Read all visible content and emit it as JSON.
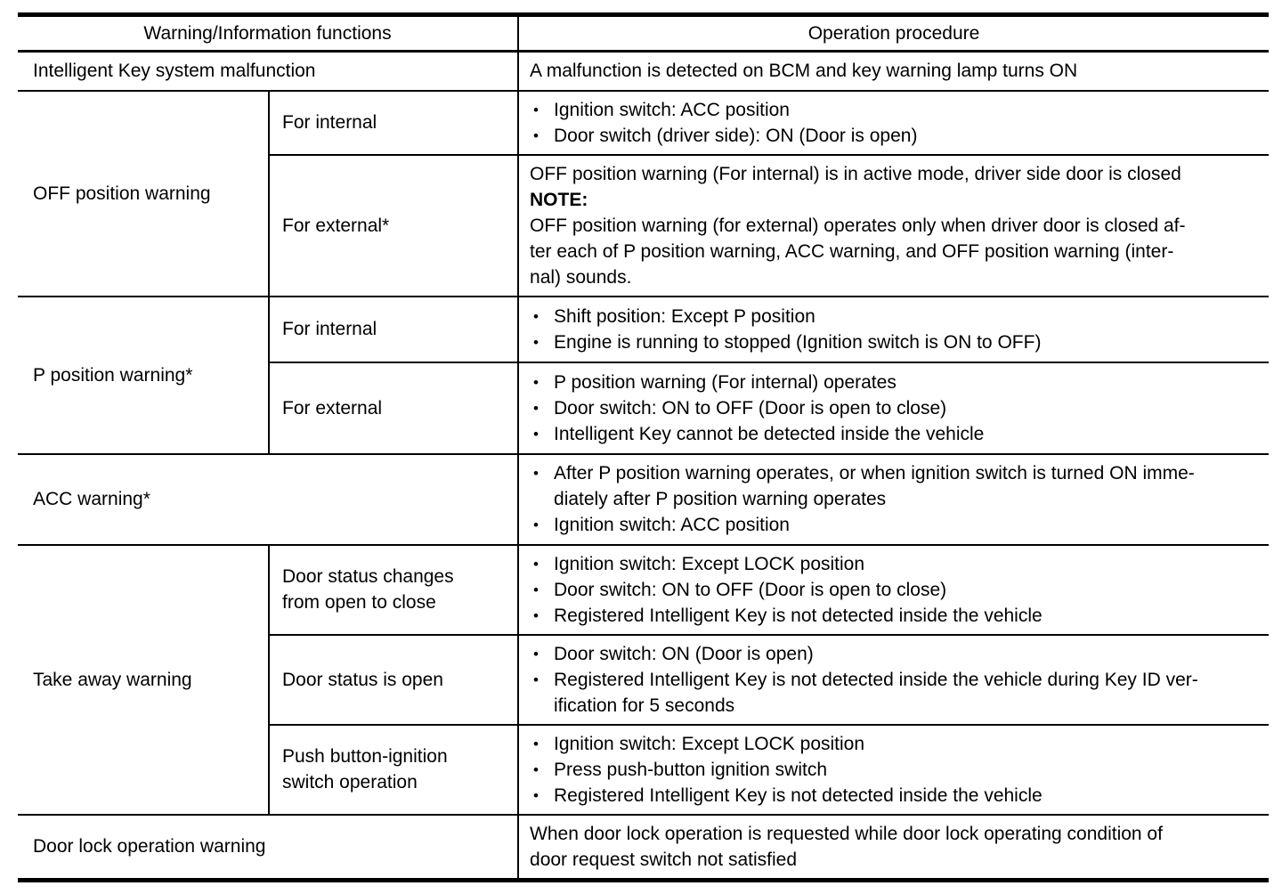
{
  "bullet_char": "•",
  "table": {
    "header": {
      "functions": "Warning/Information functions",
      "procedure": "Operation procedure"
    },
    "rows": {
      "intelligent_key": {
        "function": "Intelligent Key system malfunction",
        "procedure": "A malfunction is detected on BCM and key warning lamp turns ON"
      },
      "off_position": {
        "function": "OFF position warning",
        "internal": {
          "label": "For internal",
          "bullets": [
            "Ignition switch: ACC position",
            "Door switch (driver side): ON (Door is open)"
          ]
        },
        "external": {
          "label": "For external*",
          "intro": "OFF position warning (For internal) is in active mode, driver side door is closed",
          "note_label": "NOTE:",
          "note": "OFF position warning (for external) operates only when driver door is closed af-\nter each of P position warning, ACC warning, and OFF position warning (inter-\nnal) sounds."
        }
      },
      "p_position": {
        "function": "P position warning*",
        "internal": {
          "label": "For internal",
          "bullets": [
            "Shift position: Except P position",
            "Engine is running to stopped (Ignition switch is ON to OFF)"
          ]
        },
        "external": {
          "label": "For external",
          "bullets": [
            "P position warning (For internal) operates",
            "Door switch: ON to OFF (Door is open to close)",
            "Intelligent Key cannot be detected inside the vehicle"
          ]
        }
      },
      "acc": {
        "function": "ACC warning*",
        "bullets": [
          "After P position warning operates, or when ignition switch is turned ON imme-\ndiately after P position warning operates",
          "Ignition switch: ACC position"
        ]
      },
      "take_away": {
        "function": "Take away warning",
        "door_close": {
          "label": "Door status changes\nfrom open to close",
          "bullets": [
            "Ignition switch: Except LOCK position",
            "Door switch: ON to OFF (Door is open to close)",
            "Registered Intelligent Key is not detected inside the vehicle"
          ]
        },
        "door_open": {
          "label": "Door status is open",
          "bullets": [
            "Door switch: ON (Door is open)",
            "Registered Intelligent Key is not detected inside the vehicle during Key ID ver-\nification for 5 seconds"
          ]
        },
        "push_button": {
          "label": "Push button-ignition\nswitch operation",
          "bullets": [
            "Ignition switch: Except LOCK position",
            "Press push-button ignition switch",
            "Registered Intelligent Key is not detected inside the vehicle"
          ]
        }
      },
      "door_lock": {
        "function": "Door lock operation warning",
        "procedure": "When door lock operation is requested while door lock operating condition of\ndoor request switch not satisfied"
      }
    }
  }
}
